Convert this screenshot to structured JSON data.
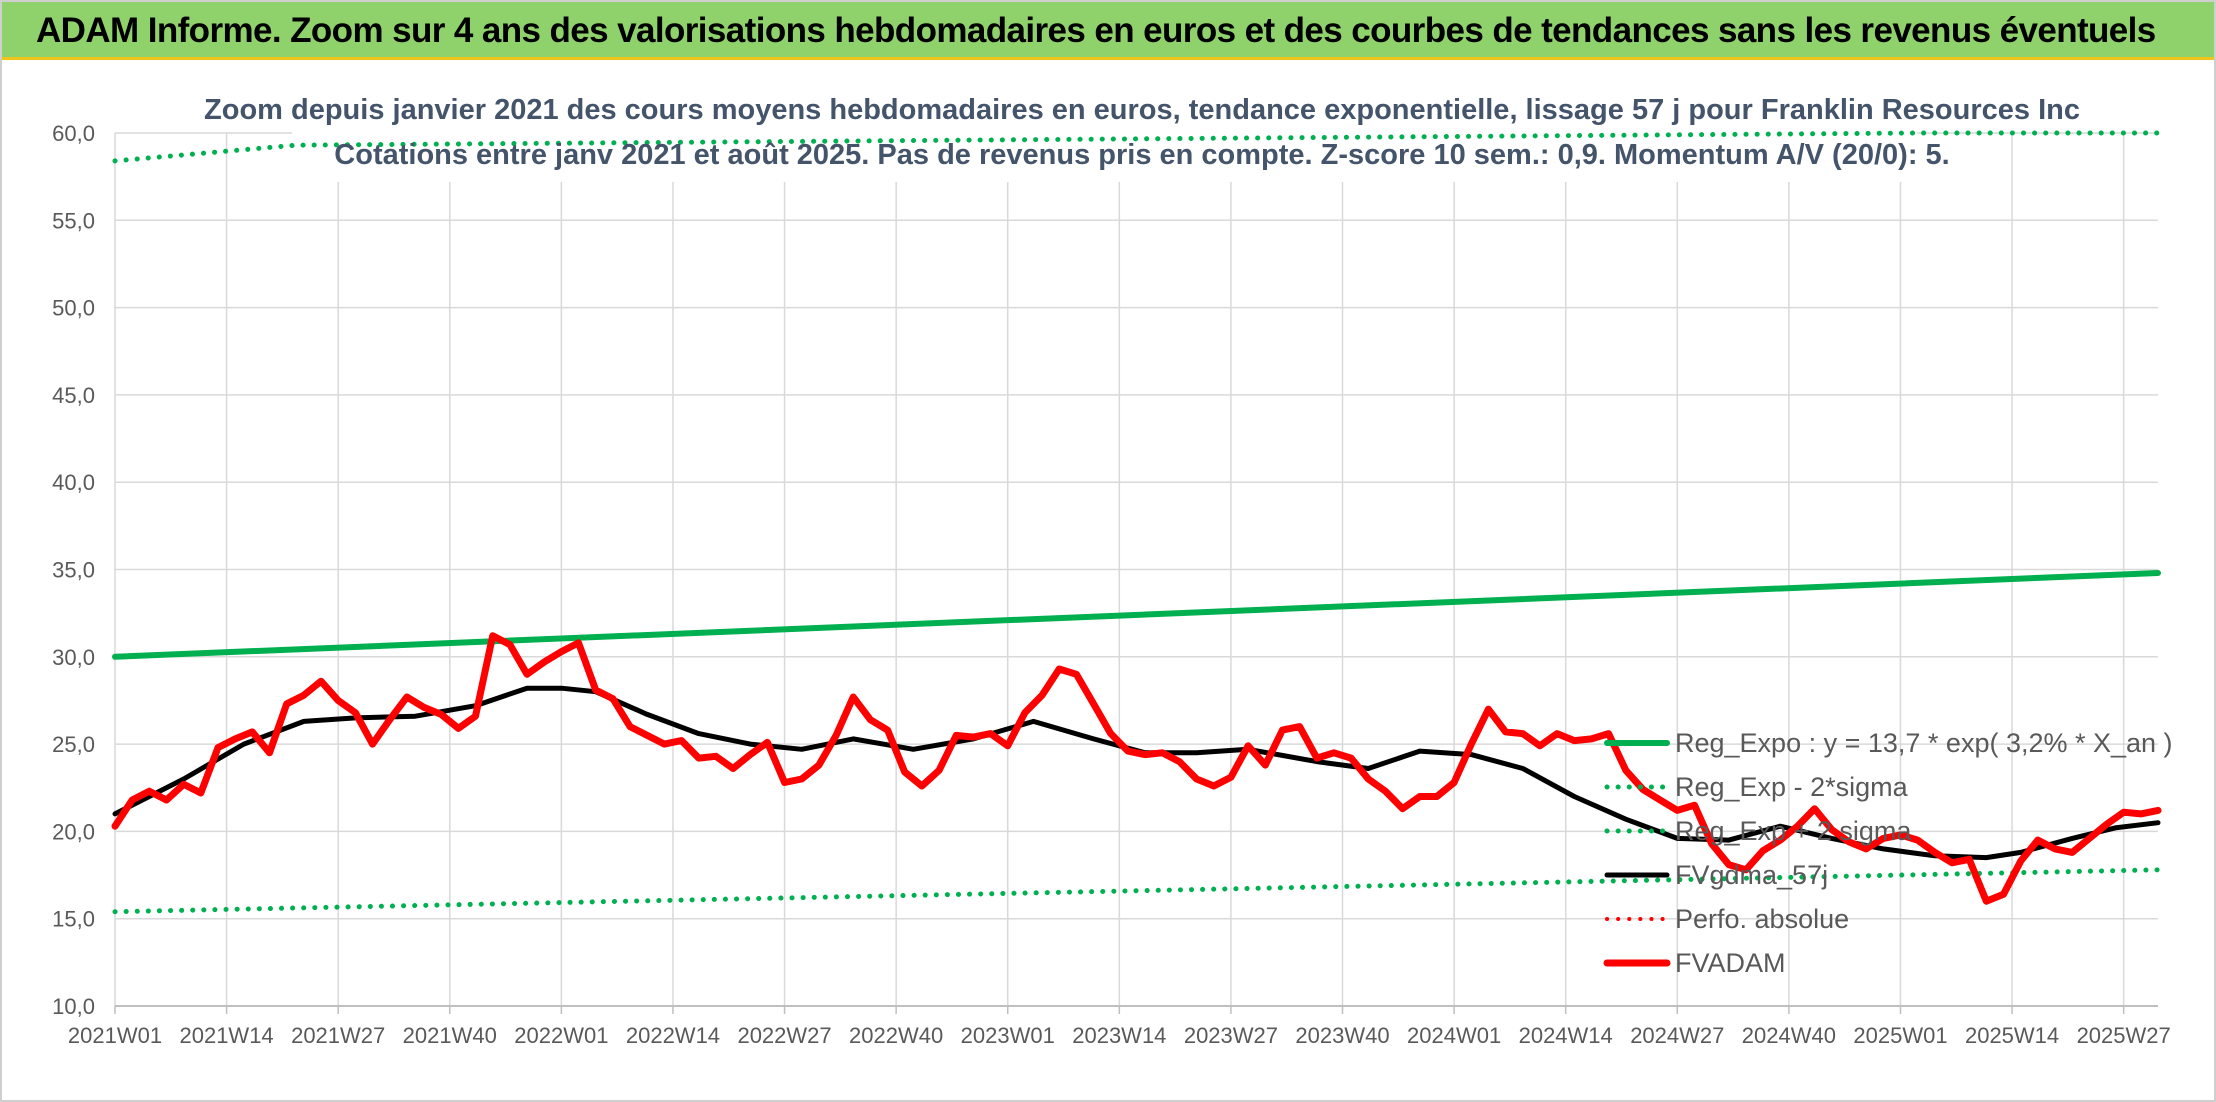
{
  "header": {
    "title": "ADAM Informe. Zoom sur 4 ans des valorisations hebdomadaires en euros et des courbes de tendances sans les revenus éventuels"
  },
  "chart_data": {
    "type": "line",
    "title": "Zoom depuis janvier 2021 des cours moyens hebdomadaires en euros, tendance exponentielle, lissage 57 j pour Franklin Resources Inc",
    "subtitle": "Cotations entre janv 2021 et août 2025. Pas de revenus pris en compte. Z-score 10 sem.: 0,9. Momentum A/V (20/0): 5.",
    "xlabel": "",
    "ylabel": "",
    "x_ticks": [
      "2021W01",
      "2021W14",
      "2021W27",
      "2021W40",
      "2022W01",
      "2022W14",
      "2022W27",
      "2022W40",
      "2023W01",
      "2023W14",
      "2023W27",
      "2023W40",
      "2024W01",
      "2024W14",
      "2024W27",
      "2024W40",
      "2025W01",
      "2025W14",
      "2025W27"
    ],
    "y_ticks": [
      "10,0",
      "15,0",
      "20,0",
      "25,0",
      "30,0",
      "35,0",
      "40,0",
      "45,0",
      "50,0",
      "55,0",
      "60,0"
    ],
    "ylim": [
      10,
      60
    ],
    "x_range_weeks": [
      0,
      238
    ],
    "grid": true,
    "legend_position": "right",
    "series": [
      {
        "name": "Reg_Expo : y = 13,7 * exp( 3,2% *  X_an )",
        "color": "#00b050",
        "style": "solid",
        "width": 6,
        "x": [
          0,
          238
        ],
        "values": [
          30.0,
          34.8
        ]
      },
      {
        "name": "Reg_Exp - 2*sigma",
        "color": "#00b050",
        "style": "dotted",
        "width": 5,
        "x": [
          0,
          238
        ],
        "values": [
          15.4,
          17.8
        ]
      },
      {
        "name": "Reg_Exp + 2 sigma",
        "color": "#00b050",
        "style": "dotted",
        "width": 5,
        "x": [
          0,
          21,
          210,
          238
        ],
        "values": [
          58.4,
          59.3,
          60.0,
          60.0
        ]
      },
      {
        "name": "FVgdma_57j",
        "color": "#000000",
        "style": "solid",
        "width": 5,
        "x": [
          0,
          8,
          15,
          22,
          28,
          35,
          42,
          48,
          52,
          56,
          62,
          68,
          74,
          80,
          86,
          93,
          100,
          107,
          114,
          120,
          126,
          132,
          140,
          146,
          152,
          158,
          164,
          170,
          176,
          182,
          188,
          194,
          200,
          206,
          212,
          218,
          222,
          228,
          233,
          238
        ],
        "values": [
          21.0,
          23.0,
          25.0,
          26.3,
          26.5,
          26.6,
          27.2,
          28.2,
          28.2,
          28.0,
          26.7,
          25.6,
          25.0,
          24.7,
          25.3,
          24.7,
          25.3,
          26.3,
          25.3,
          24.5,
          24.5,
          24.7,
          24.0,
          23.6,
          24.6,
          24.4,
          23.6,
          22.0,
          20.7,
          19.6,
          19.5,
          20.3,
          19.6,
          19.0,
          18.6,
          18.5,
          18.8,
          19.6,
          20.2,
          20.5
        ]
      },
      {
        "name": "Perfo. absolue",
        "color": "#ff0000",
        "style": "dotted",
        "width": 4,
        "x": [],
        "values": []
      },
      {
        "name": "FVADAM",
        "color": "#ff0000",
        "style": "solid",
        "width": 7,
        "x": [
          0,
          2,
          4,
          6,
          8,
          10,
          12,
          14,
          16,
          18,
          20,
          22,
          24,
          26,
          28,
          30,
          32,
          34,
          36,
          38,
          40,
          42,
          44,
          46,
          48,
          50,
          52,
          54,
          56,
          58,
          60,
          62,
          64,
          66,
          68,
          70,
          72,
          74,
          76,
          78,
          80,
          82,
          84,
          86,
          88,
          90,
          92,
          94,
          96,
          98,
          100,
          102,
          104,
          106,
          108,
          110,
          112,
          114,
          116,
          118,
          120,
          122,
          124,
          126,
          128,
          130,
          132,
          134,
          136,
          138,
          140,
          142,
          144,
          146,
          148,
          150,
          152,
          154,
          156,
          158,
          160,
          162,
          164,
          166,
          168,
          170,
          172,
          174,
          176,
          178,
          180,
          182,
          184,
          186,
          188,
          190,
          192,
          194,
          196,
          198,
          200,
          202,
          204,
          206,
          208,
          210,
          212,
          214,
          216,
          218,
          220,
          222,
          224,
          226,
          228,
          230,
          232,
          234,
          236,
          238
        ],
        "values": [
          20.3,
          21.8,
          22.3,
          21.8,
          22.7,
          22.2,
          24.8,
          25.3,
          25.7,
          24.5,
          27.3,
          27.8,
          28.6,
          27.5,
          26.8,
          25.0,
          26.4,
          27.7,
          27.1,
          26.7,
          25.9,
          26.6,
          31.2,
          30.7,
          29.0,
          29.7,
          30.3,
          30.8,
          28.1,
          27.6,
          26.0,
          25.5,
          25.0,
          25.2,
          24.2,
          24.3,
          23.6,
          24.4,
          25.1,
          22.8,
          23.0,
          23.8,
          25.5,
          27.7,
          26.4,
          25.8,
          23.4,
          22.6,
          23.5,
          25.5,
          25.4,
          25.6,
          24.9,
          26.8,
          27.8,
          29.3,
          29.0,
          27.3,
          25.6,
          24.6,
          24.4,
          24.5,
          24.0,
          23.0,
          22.6,
          23.1,
          24.9,
          23.8,
          25.8,
          26.0,
          24.2,
          24.5,
          24.2,
          23.0,
          22.3,
          21.3,
          22.0,
          22.0,
          22.8,
          25.0,
          27.0,
          25.7,
          25.6,
          24.9,
          25.6,
          25.2,
          25.3,
          25.6,
          23.5,
          22.4,
          21.8,
          21.2,
          21.5,
          19.3,
          18.1,
          17.8,
          18.9,
          19.5,
          20.3,
          21.3,
          20.1,
          19.4,
          19.0,
          19.6,
          19.8,
          19.5,
          18.8,
          18.2,
          18.4,
          16.0,
          16.4,
          18.3,
          19.5,
          19.0,
          18.8,
          19.6,
          20.4,
          21.1,
          21.0,
          21.2
        ]
      }
    ]
  }
}
